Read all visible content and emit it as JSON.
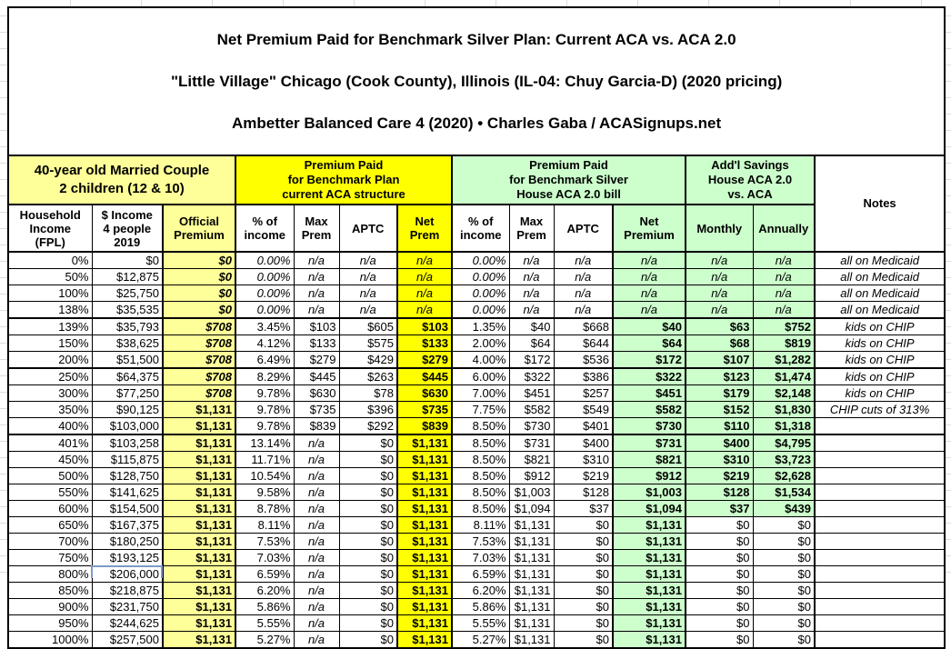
{
  "title": {
    "line1": "Net Premium Paid for Benchmark Silver Plan: Current ACA vs. ACA 2.0",
    "line2": "\"Little Village\" Chicago (Cook County), Illinois (IL-04: Chuy Garcia-D) (2020 pricing)",
    "line3": "Ambetter Balanced Care 4 (2020) • Charles Gaba / ACASignups.net"
  },
  "header": {
    "group1": "40-year old Married Couple\n2 children (12 & 10)",
    "group2": "Premium Paid\nfor Benchmark Plan\ncurrent ACA structure",
    "group3": "Premium Paid\nfor Benchmark Silver\nHouse ACA 2.0 bill",
    "group4": "Add'l Savings\nHouse ACA 2.0\nvs. ACA",
    "notes": "Notes",
    "columns": [
      "Household\nIncome\n(FPL)",
      "$ Income\n4 people\n2019",
      "Official\nPremium",
      "% of\nincome",
      "Max\nPrem",
      "APTC",
      "Net\nPrem",
      "% of\nincome",
      "Max\nPrem",
      "APTC",
      "Net\nPremium",
      "Monthly",
      "Annually"
    ]
  },
  "colors": {
    "pale_yellow": "#FFFF99",
    "bright_yellow": "#FFFF00",
    "pale_green": "#CCFFCC",
    "grid_gray": "#DCDCDC",
    "selection_blue": "#7E99C9"
  },
  "rows": [
    {
      "fpl": "0%",
      "income": "$0",
      "official": "$0",
      "aca_pct": "0.00%",
      "aca_max": "n/a",
      "aca_aptc": "n/a",
      "aca_net": "n/a",
      "house_pct": "0.00%",
      "house_max": "n/a",
      "house_aptc": "n/a",
      "house_net": "n/a",
      "monthly": "n/a",
      "annually": "n/a",
      "notes": "all on Medicaid"
    },
    {
      "fpl": "50%",
      "income": "$12,875",
      "official": "$0",
      "aca_pct": "0.00%",
      "aca_max": "n/a",
      "aca_aptc": "n/a",
      "aca_net": "n/a",
      "house_pct": "0.00%",
      "house_max": "n/a",
      "house_aptc": "n/a",
      "house_net": "n/a",
      "monthly": "n/a",
      "annually": "n/a",
      "notes": "all on Medicaid"
    },
    {
      "fpl": "100%",
      "income": "$25,750",
      "official": "$0",
      "aca_pct": "0.00%",
      "aca_max": "n/a",
      "aca_aptc": "n/a",
      "aca_net": "n/a",
      "house_pct": "0.00%",
      "house_max": "n/a",
      "house_aptc": "n/a",
      "house_net": "n/a",
      "monthly": "n/a",
      "annually": "n/a",
      "notes": "all on Medicaid"
    },
    {
      "fpl": "138%",
      "income": "$35,535",
      "official": "$0",
      "aca_pct": "0.00%",
      "aca_max": "n/a",
      "aca_aptc": "n/a",
      "aca_net": "n/a",
      "house_pct": "0.00%",
      "house_max": "n/a",
      "house_aptc": "n/a",
      "house_net": "n/a",
      "monthly": "n/a",
      "annually": "n/a",
      "notes": "all on Medicaid"
    },
    {
      "fpl": "139%",
      "income": "$35,793",
      "official": "$708",
      "aca_pct": "3.45%",
      "aca_max": "$103",
      "aca_aptc": "$605",
      "aca_net": "$103",
      "house_pct": "1.35%",
      "house_max": "$40",
      "house_aptc": "$668",
      "house_net": "$40",
      "monthly": "$63",
      "annually": "$752",
      "notes": "kids on CHIP"
    },
    {
      "fpl": "150%",
      "income": "$38,625",
      "official": "$708",
      "aca_pct": "4.12%",
      "aca_max": "$133",
      "aca_aptc": "$575",
      "aca_net": "$133",
      "house_pct": "2.00%",
      "house_max": "$64",
      "house_aptc": "$644",
      "house_net": "$64",
      "monthly": "$68",
      "annually": "$819",
      "notes": "kids on CHIP"
    },
    {
      "fpl": "200%",
      "income": "$51,500",
      "official": "$708",
      "aca_pct": "6.49%",
      "aca_max": "$279",
      "aca_aptc": "$429",
      "aca_net": "$279",
      "house_pct": "4.00%",
      "house_max": "$172",
      "house_aptc": "$536",
      "house_net": "$172",
      "monthly": "$107",
      "annually": "$1,282",
      "notes": "kids on CHIP"
    },
    {
      "fpl": "250%",
      "income": "$64,375",
      "official": "$708",
      "aca_pct": "8.29%",
      "aca_max": "$445",
      "aca_aptc": "$263",
      "aca_net": "$445",
      "house_pct": "6.00%",
      "house_max": "$322",
      "house_aptc": "$386",
      "house_net": "$322",
      "monthly": "$123",
      "annually": "$1,474",
      "notes": "kids on CHIP"
    },
    {
      "fpl": "300%",
      "income": "$77,250",
      "official": "$708",
      "aca_pct": "9.78%",
      "aca_max": "$630",
      "aca_aptc": "$78",
      "aca_net": "$630",
      "house_pct": "7.00%",
      "house_max": "$451",
      "house_aptc": "$257",
      "house_net": "$451",
      "monthly": "$179",
      "annually": "$2,148",
      "notes": "kids on CHIP"
    },
    {
      "fpl": "350%",
      "income": "$90,125",
      "official": "$1,131",
      "aca_pct": "9.78%",
      "aca_max": "$735",
      "aca_aptc": "$396",
      "aca_net": "$735",
      "house_pct": "7.75%",
      "house_max": "$582",
      "house_aptc": "$549",
      "house_net": "$582",
      "monthly": "$152",
      "annually": "$1,830",
      "notes": "CHIP cuts of 313%"
    },
    {
      "fpl": "400%",
      "income": "$103,000",
      "official": "$1,131",
      "aca_pct": "9.78%",
      "aca_max": "$839",
      "aca_aptc": "$292",
      "aca_net": "$839",
      "house_pct": "8.50%",
      "house_max": "$730",
      "house_aptc": "$401",
      "house_net": "$730",
      "monthly": "$110",
      "annually": "$1,318",
      "notes": ""
    },
    {
      "fpl": "401%",
      "income": "$103,258",
      "official": "$1,131",
      "aca_pct": "13.14%",
      "aca_max": "n/a",
      "aca_aptc": "$0",
      "aca_net": "$1,131",
      "house_pct": "8.50%",
      "house_max": "$731",
      "house_aptc": "$400",
      "house_net": "$731",
      "monthly": "$400",
      "annually": "$4,795",
      "notes": ""
    },
    {
      "fpl": "450%",
      "income": "$115,875",
      "official": "$1,131",
      "aca_pct": "11.71%",
      "aca_max": "n/a",
      "aca_aptc": "$0",
      "aca_net": "$1,131",
      "house_pct": "8.50%",
      "house_max": "$821",
      "house_aptc": "$310",
      "house_net": "$821",
      "monthly": "$310",
      "annually": "$3,723",
      "notes": ""
    },
    {
      "fpl": "500%",
      "income": "$128,750",
      "official": "$1,131",
      "aca_pct": "10.54%",
      "aca_max": "n/a",
      "aca_aptc": "$0",
      "aca_net": "$1,131",
      "house_pct": "8.50%",
      "house_max": "$912",
      "house_aptc": "$219",
      "house_net": "$912",
      "monthly": "$219",
      "annually": "$2,628",
      "notes": ""
    },
    {
      "fpl": "550%",
      "income": "$141,625",
      "official": "$1,131",
      "aca_pct": "9.58%",
      "aca_max": "n/a",
      "aca_aptc": "$0",
      "aca_net": "$1,131",
      "house_pct": "8.50%",
      "house_max": "$1,003",
      "house_aptc": "$128",
      "house_net": "$1,003",
      "monthly": "$128",
      "annually": "$1,534",
      "notes": ""
    },
    {
      "fpl": "600%",
      "income": "$154,500",
      "official": "$1,131",
      "aca_pct": "8.78%",
      "aca_max": "n/a",
      "aca_aptc": "$0",
      "aca_net": "$1,131",
      "house_pct": "8.50%",
      "house_max": "$1,094",
      "house_aptc": "$37",
      "house_net": "$1,094",
      "monthly": "$37",
      "annually": "$439",
      "notes": ""
    },
    {
      "fpl": "650%",
      "income": "$167,375",
      "official": "$1,131",
      "aca_pct": "8.11%",
      "aca_max": "n/a",
      "aca_aptc": "$0",
      "aca_net": "$1,131",
      "house_pct": "8.11%",
      "house_max": "$1,131",
      "house_aptc": "$0",
      "house_net": "$1,131",
      "monthly": "$0",
      "annually": "$0",
      "notes": ""
    },
    {
      "fpl": "700%",
      "income": "$180,250",
      "official": "$1,131",
      "aca_pct": "7.53%",
      "aca_max": "n/a",
      "aca_aptc": "$0",
      "aca_net": "$1,131",
      "house_pct": "7.53%",
      "house_max": "$1,131",
      "house_aptc": "$0",
      "house_net": "$1,131",
      "monthly": "$0",
      "annually": "$0",
      "notes": ""
    },
    {
      "fpl": "750%",
      "income": "$193,125",
      "official": "$1,131",
      "aca_pct": "7.03%",
      "aca_max": "n/a",
      "aca_aptc": "$0",
      "aca_net": "$1,131",
      "house_pct": "7.03%",
      "house_max": "$1,131",
      "house_aptc": "$0",
      "house_net": "$1,131",
      "monthly": "$0",
      "annually": "$0",
      "notes": ""
    },
    {
      "fpl": "800%",
      "income": "$206,000",
      "official": "$1,131",
      "aca_pct": "6.59%",
      "aca_max": "n/a",
      "aca_aptc": "$0",
      "aca_net": "$1,131",
      "house_pct": "6.59%",
      "house_max": "$1,131",
      "house_aptc": "$0",
      "house_net": "$1,131",
      "monthly": "$0",
      "annually": "$0",
      "notes": ""
    },
    {
      "fpl": "850%",
      "income": "$218,875",
      "official": "$1,131",
      "aca_pct": "6.20%",
      "aca_max": "n/a",
      "aca_aptc": "$0",
      "aca_net": "$1,131",
      "house_pct": "6.20%",
      "house_max": "$1,131",
      "house_aptc": "$0",
      "house_net": "$1,131",
      "monthly": "$0",
      "annually": "$0",
      "notes": ""
    },
    {
      "fpl": "900%",
      "income": "$231,750",
      "official": "$1,131",
      "aca_pct": "5.86%",
      "aca_max": "n/a",
      "aca_aptc": "$0",
      "aca_net": "$1,131",
      "house_pct": "5.86%",
      "house_max": "$1,131",
      "house_aptc": "$0",
      "house_net": "$1,131",
      "monthly": "$0",
      "annually": "$0",
      "notes": ""
    },
    {
      "fpl": "950%",
      "income": "$244,625",
      "official": "$1,131",
      "aca_pct": "5.55%",
      "aca_max": "n/a",
      "aca_aptc": "$0",
      "aca_net": "$1,131",
      "house_pct": "5.55%",
      "house_max": "$1,131",
      "house_aptc": "$0",
      "house_net": "$1,131",
      "monthly": "$0",
      "annually": "$0",
      "notes": ""
    },
    {
      "fpl": "1000%",
      "income": "$257,500",
      "official": "$1,131",
      "aca_pct": "5.27%",
      "aca_max": "n/a",
      "aca_aptc": "$0",
      "aca_net": "$1,131",
      "house_pct": "5.27%",
      "house_max": "$1,131",
      "house_aptc": "$0",
      "house_net": "$1,131",
      "monthly": "$0",
      "annually": "$0",
      "notes": ""
    }
  ]
}
